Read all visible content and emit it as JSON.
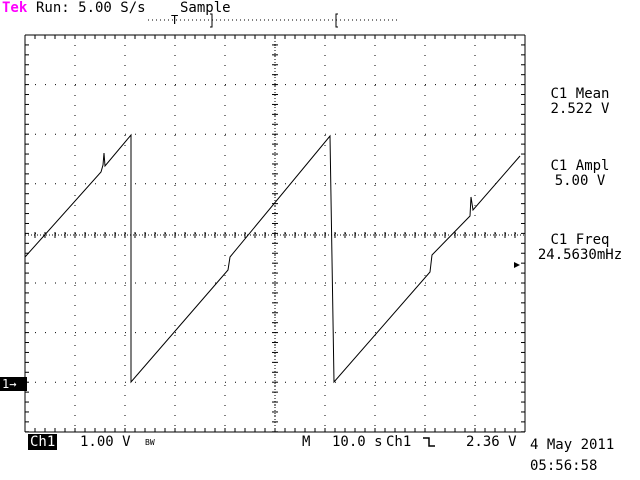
{
  "header": {
    "brand": "Tek",
    "run_status": "Run: 5.00 S/s",
    "acquire_mode": "Sample"
  },
  "measurements": [
    {
      "label": "C1 Mean",
      "value": "2.522 V"
    },
    {
      "label": "C1 Ampl",
      "value": "5.00 V"
    },
    {
      "label": "C1 Freq",
      "value": "24.5630mHz"
    }
  ],
  "footer": {
    "channel": "Ch1",
    "volts_per_div": "1.00 V",
    "bw_flag": "BW",
    "time_label": "M",
    "time_per_div": "10.0 s",
    "trigger_source": "Ch1",
    "trigger_level": "2.36 V",
    "date": "4 May 2011",
    "time": "05:56:58"
  },
  "markers": {
    "channel_ground": "1",
    "trigger_pos": "T"
  },
  "colors": {
    "brand": "#ff00ff",
    "trace": "#000000",
    "grid": "#000000",
    "background": "#ffffff"
  }
}
